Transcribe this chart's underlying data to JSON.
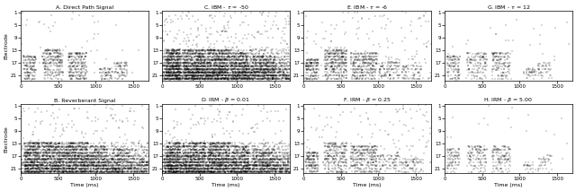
{
  "titles": [
    "A. Direct Path Signal",
    "B. Reverberant Signal",
    "C. IBM - $\\tau$ = -50",
    "D. IRM - $\\beta$ = 0.01",
    "E. IBM - $\\tau$ = -6",
    "F. IRM - $\\beta$ = 0.25",
    "G. IBM - $\\tau$ = 12",
    "H. IRM - $\\beta$ = 5.00"
  ],
  "xlabel": "Time (ms)",
  "ylabel": "Electrode",
  "xlim": [
    0,
    1700
  ],
  "ylim": [
    22.5,
    0.5
  ],
  "yticks": [
    1,
    5,
    9,
    13,
    17,
    21
  ],
  "xticks": [
    0,
    500,
    1000,
    1500
  ],
  "seed": 42,
  "background": "#ffffff",
  "dot_color": "black"
}
